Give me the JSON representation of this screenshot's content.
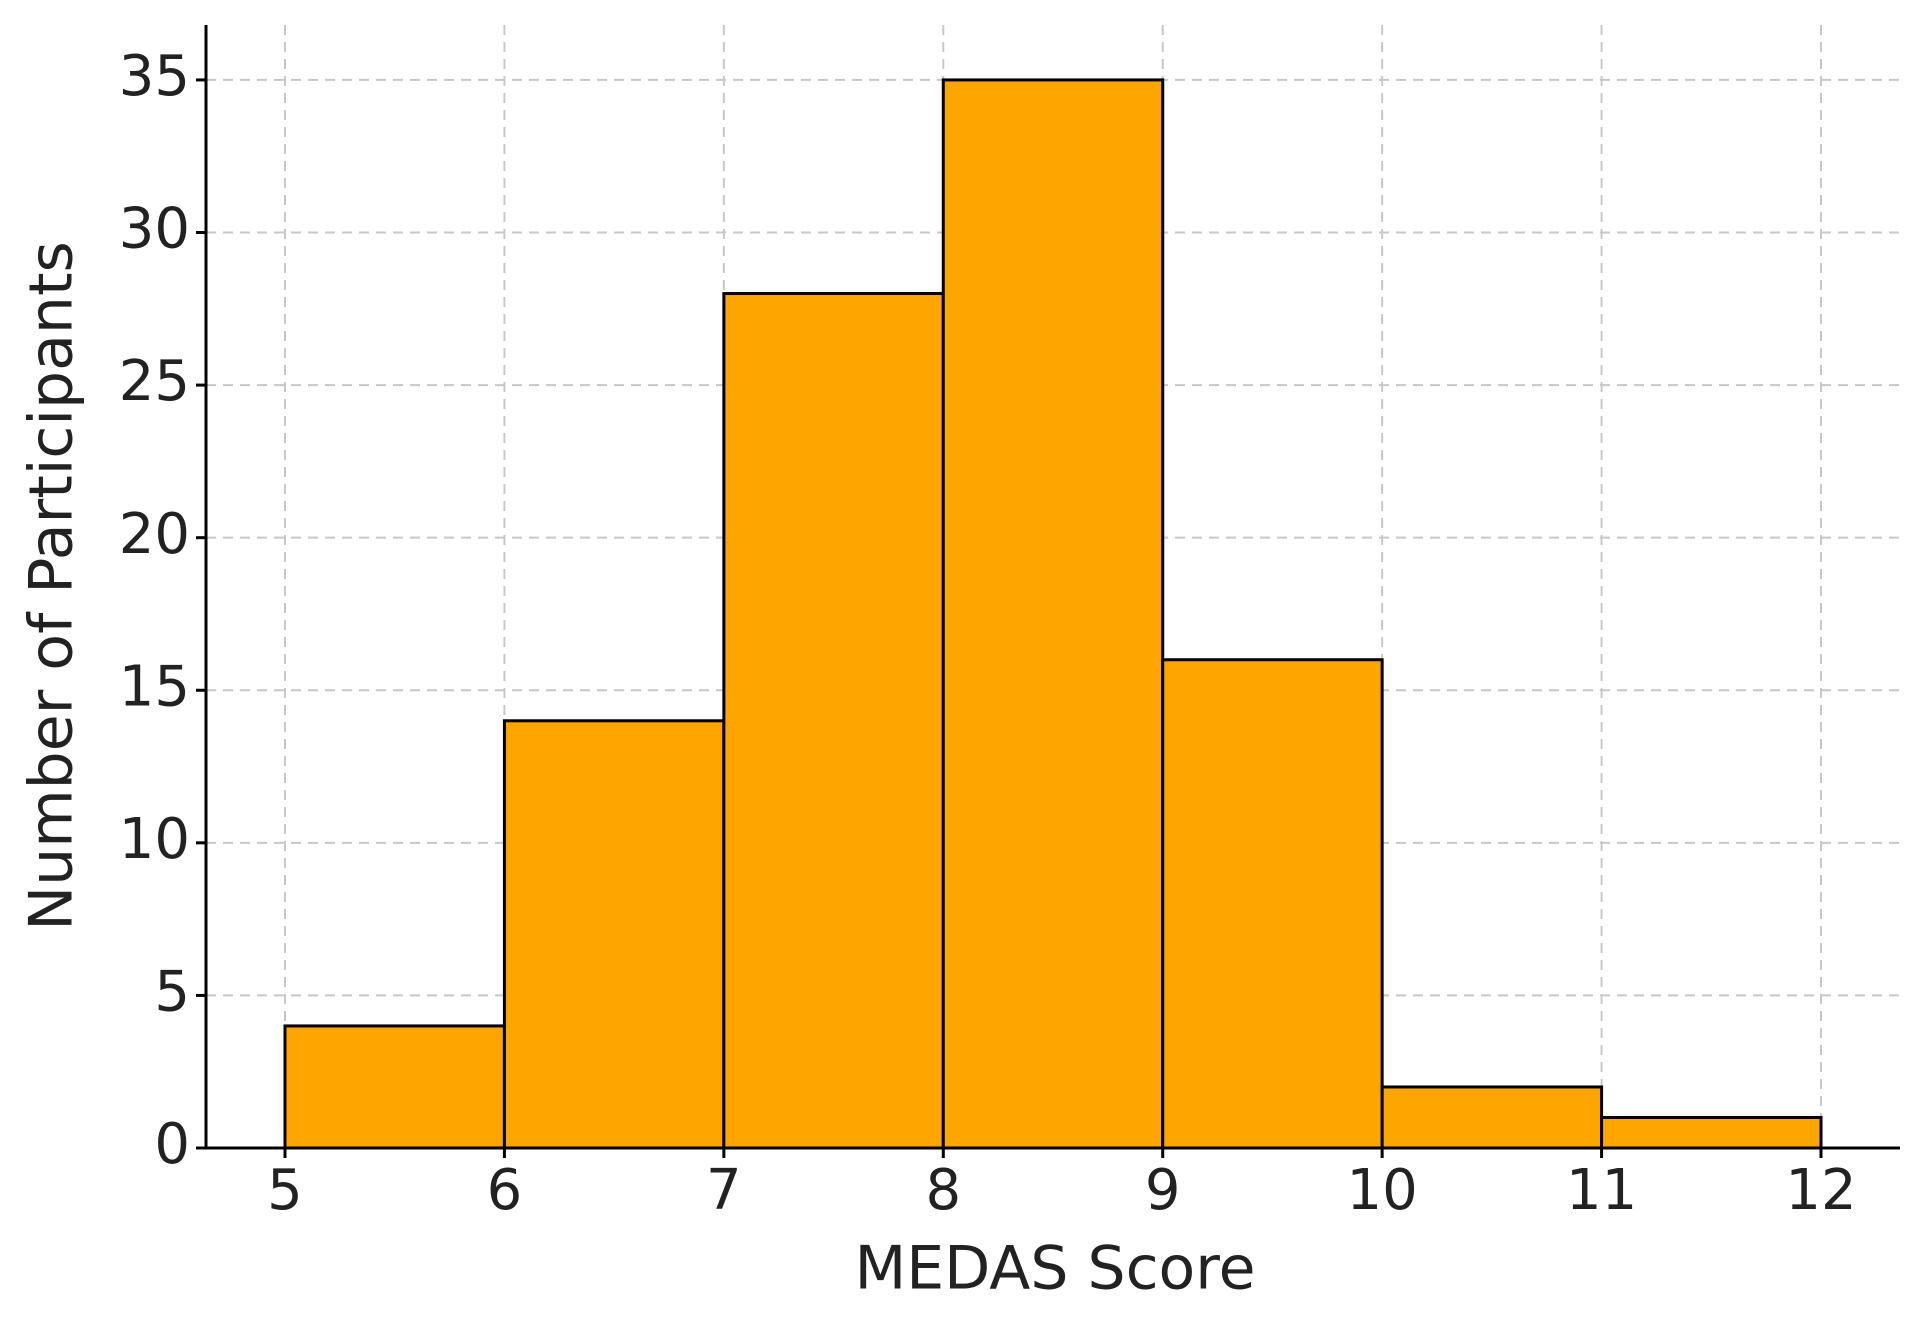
{
  "chart_data": {
    "type": "histogram",
    "xlabel": "MEDAS Score",
    "ylabel": "Number of Participants",
    "bins": [
      5,
      6,
      7,
      8,
      9,
      10,
      11,
      12
    ],
    "values": [
      4,
      14,
      28,
      35,
      16,
      2,
      1
    ],
    "color": "#ffa500",
    "edgecolor": "#000000",
    "xlim": [
      4.64,
      12.36
    ],
    "ylim": [
      0,
      36.8
    ],
    "xticks": [
      5,
      6,
      7,
      8,
      9,
      10,
      11,
      12
    ],
    "yticks": [
      0,
      5,
      10,
      15,
      20,
      25,
      30,
      35
    ],
    "grid": true
  }
}
